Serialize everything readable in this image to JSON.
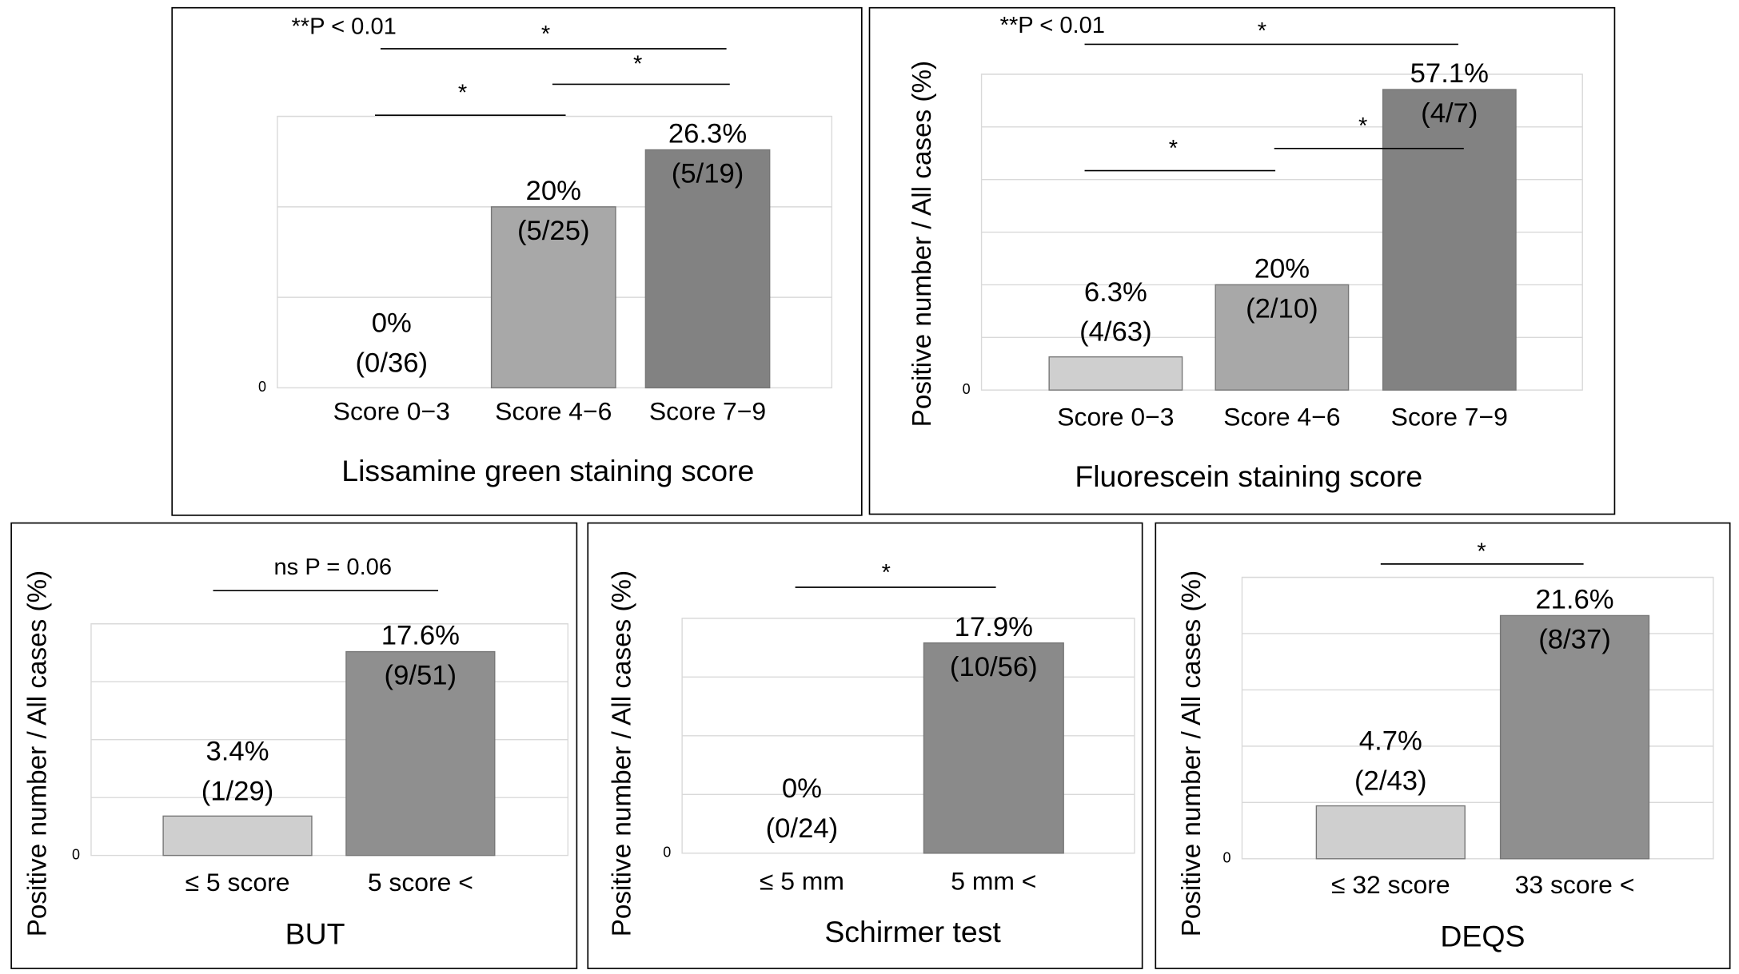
{
  "chart_data": [
    {
      "type": "bar",
      "categories": [
        "Score 0−3",
        "Score 4−6",
        "Score 7−9"
      ],
      "values": [
        0,
        20,
        26.3
      ],
      "value_labels": [
        "0%",
        "20%",
        "26.3%"
      ],
      "count_labels": [
        "(0/36)",
        "(5/25)",
        "(5/19)"
      ],
      "colors": [
        "#c9c9c9",
        "#a8a8a8",
        "#828282"
      ],
      "xlabel": "Lissamine green staining score",
      "ylim": [
        0,
        30
      ],
      "yticks": [
        0
      ],
      "gridlines": [
        10,
        20,
        30
      ],
      "annotations": [
        "**P < 0.01",
        "*",
        "*",
        "*"
      ]
    },
    {
      "type": "bar",
      "categories": [
        "Score 0−3",
        "Score 4−6",
        "Score 7−9"
      ],
      "values": [
        6.3,
        20,
        57.1
      ],
      "value_labels": [
        "6.3%",
        "20%",
        "57.1%"
      ],
      "count_labels": [
        "(4/63)",
        "(2/10)",
        "(4/7)"
      ],
      "colors": [
        "#cfcfcf",
        "#a8a8a8",
        "#828282"
      ],
      "xlabel": "Fluorescein staining score",
      "ylabel": "Positive number  / All cases (%)",
      "ylim": [
        0,
        60
      ],
      "yticks": [
        0
      ],
      "gridlines": [
        10,
        20,
        30,
        40,
        50,
        60
      ],
      "annotations": [
        "**P < 0.01",
        "*",
        "*",
        "*"
      ]
    },
    {
      "type": "bar",
      "categories": [
        "≤ 5 score",
        "5 score <"
      ],
      "values": [
        3.4,
        17.6
      ],
      "value_labels": [
        "3.4%",
        "17.6%"
      ],
      "count_labels": [
        "(1/29)",
        "(9/51)"
      ],
      "colors": [
        "#cfcfcf",
        "#8f8f8f"
      ],
      "xlabel": "BUT",
      "ylabel": "Positive number  / All cases (%)",
      "ylim": [
        0,
        20
      ],
      "yticks": [
        0
      ],
      "gridlines": [
        5,
        10,
        15,
        20
      ],
      "annotations": [
        "ns  P = 0.06"
      ]
    },
    {
      "type": "bar",
      "categories": [
        "≤ 5 mm",
        "5 mm  <"
      ],
      "values": [
        0,
        17.9
      ],
      "value_labels": [
        "0%",
        "17.9%"
      ],
      "count_labels": [
        "(0/24)",
        "(10/56)"
      ],
      "colors": [
        "#cfcfcf",
        "#8a8a8a"
      ],
      "xlabel": "Schirmer test",
      "ylabel": "Positive number  / All cases (%)",
      "ylim": [
        0,
        20
      ],
      "yticks": [
        0
      ],
      "gridlines": [
        5,
        10,
        15,
        20
      ],
      "annotations": [
        "*"
      ]
    },
    {
      "type": "bar",
      "categories": [
        "≤ 32 score",
        "33 score <"
      ],
      "values": [
        4.7,
        21.6
      ],
      "value_labels": [
        "4.7%",
        "21.6%"
      ],
      "count_labels": [
        "(2/43)",
        "(8/37)"
      ],
      "colors": [
        "#cfcfcf",
        "#8f8f8f"
      ],
      "xlabel": "DEQS",
      "ylabel": "Positive number  / All cases (%)",
      "ylim": [
        0,
        25
      ],
      "yticks": [
        0
      ],
      "gridlines": [
        5,
        10,
        15,
        20,
        25
      ],
      "annotations": [
        "*"
      ]
    }
  ]
}
